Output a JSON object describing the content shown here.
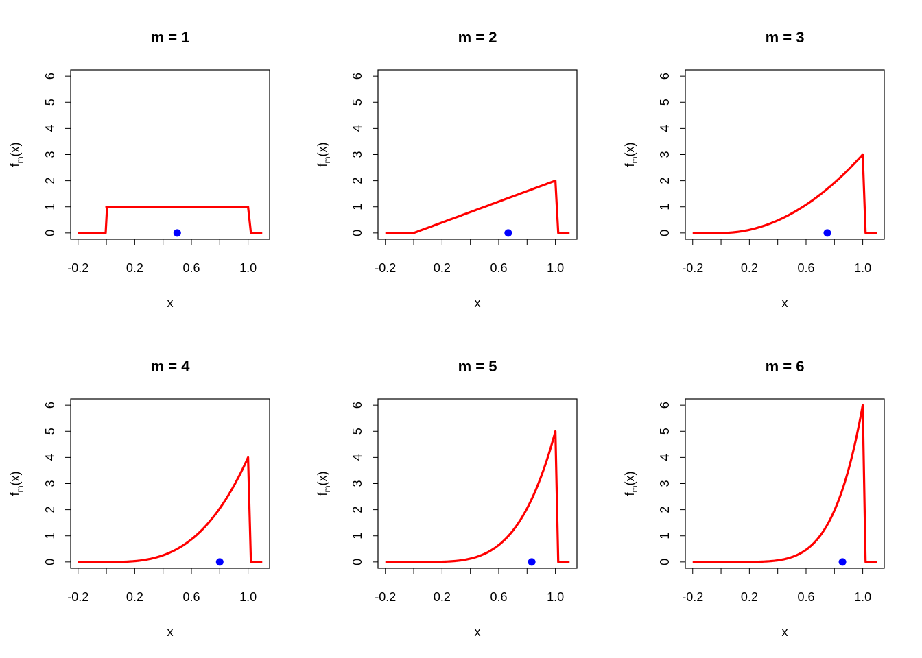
{
  "chart_data": [
    {
      "type": "line",
      "title": "m =  1",
      "xlabel": "x",
      "ylabel": "f_m(x)",
      "ylabel_main": "f",
      "ylabel_sub": "m",
      "ylabel_tail": "(x)",
      "xlim": [
        -0.2,
        1.1
      ],
      "ylim": [
        0,
        6
      ],
      "x_ticks": [
        -0.2,
        0.0,
        0.2,
        0.4,
        0.6,
        0.8,
        1.0
      ],
      "x_tick_labels": [
        "-0.2",
        "",
        "0.2",
        "",
        "0.6",
        "",
        "1.0"
      ],
      "y_ticks": [
        0,
        1,
        2,
        3,
        4,
        5,
        6
      ],
      "y_tick_labels": [
        "0",
        "1",
        "2",
        "3",
        "4",
        "5",
        "6"
      ],
      "m": 1,
      "density_formula": "m * x^(m-1) on [0,1], 0 elsewhere",
      "series_color": "#ff0000",
      "marker": {
        "x": 0.5,
        "y": 0,
        "color": "#0000ff"
      }
    },
    {
      "type": "line",
      "title": "m =  2",
      "xlabel": "x",
      "ylabel": "f_m(x)",
      "ylabel_main": "f",
      "ylabel_sub": "m",
      "ylabel_tail": "(x)",
      "xlim": [
        -0.2,
        1.1
      ],
      "ylim": [
        0,
        6
      ],
      "x_ticks": [
        -0.2,
        0.0,
        0.2,
        0.4,
        0.6,
        0.8,
        1.0
      ],
      "x_tick_labels": [
        "-0.2",
        "",
        "0.2",
        "",
        "0.6",
        "",
        "1.0"
      ],
      "y_ticks": [
        0,
        1,
        2,
        3,
        4,
        5,
        6
      ],
      "y_tick_labels": [
        "0",
        "1",
        "2",
        "3",
        "4",
        "5",
        "6"
      ],
      "m": 2,
      "density_formula": "m * x^(m-1) on [0,1], 0 elsewhere",
      "series_color": "#ff0000",
      "marker": {
        "x": 0.667,
        "y": 0,
        "color": "#0000ff"
      }
    },
    {
      "type": "line",
      "title": "m =  3",
      "xlabel": "x",
      "ylabel": "f_m(x)",
      "ylabel_main": "f",
      "ylabel_sub": "m",
      "ylabel_tail": "(x)",
      "xlim": [
        -0.2,
        1.1
      ],
      "ylim": [
        0,
        6
      ],
      "x_ticks": [
        -0.2,
        0.0,
        0.2,
        0.4,
        0.6,
        0.8,
        1.0
      ],
      "x_tick_labels": [
        "-0.2",
        "",
        "0.2",
        "",
        "0.6",
        "",
        "1.0"
      ],
      "y_ticks": [
        0,
        1,
        2,
        3,
        4,
        5,
        6
      ],
      "y_tick_labels": [
        "0",
        "1",
        "2",
        "3",
        "4",
        "5",
        "6"
      ],
      "m": 3,
      "density_formula": "m * x^(m-1) on [0,1], 0 elsewhere",
      "series_color": "#ff0000",
      "marker": {
        "x": 0.75,
        "y": 0,
        "color": "#0000ff"
      }
    },
    {
      "type": "line",
      "title": "m =  4",
      "xlabel": "x",
      "ylabel": "f_m(x)",
      "ylabel_main": "f",
      "ylabel_sub": "m",
      "ylabel_tail": "(x)",
      "xlim": [
        -0.2,
        1.1
      ],
      "ylim": [
        0,
        6
      ],
      "x_ticks": [
        -0.2,
        0.0,
        0.2,
        0.4,
        0.6,
        0.8,
        1.0
      ],
      "x_tick_labels": [
        "-0.2",
        "",
        "0.2",
        "",
        "0.6",
        "",
        "1.0"
      ],
      "y_ticks": [
        0,
        1,
        2,
        3,
        4,
        5,
        6
      ],
      "y_tick_labels": [
        "0",
        "1",
        "2",
        "3",
        "4",
        "5",
        "6"
      ],
      "m": 4,
      "density_formula": "m * x^(m-1) on [0,1], 0 elsewhere",
      "series_color": "#ff0000",
      "marker": {
        "x": 0.8,
        "y": 0,
        "color": "#0000ff"
      }
    },
    {
      "type": "line",
      "title": "m =  5",
      "xlabel": "x",
      "ylabel": "f_m(x)",
      "ylabel_main": "f",
      "ylabel_sub": "m",
      "ylabel_tail": "(x)",
      "xlim": [
        -0.2,
        1.1
      ],
      "ylim": [
        0,
        6
      ],
      "x_ticks": [
        -0.2,
        0.0,
        0.2,
        0.4,
        0.6,
        0.8,
        1.0
      ],
      "x_tick_labels": [
        "-0.2",
        "",
        "0.2",
        "",
        "0.6",
        "",
        "1.0"
      ],
      "y_ticks": [
        0,
        1,
        2,
        3,
        4,
        5,
        6
      ],
      "y_tick_labels": [
        "0",
        "1",
        "2",
        "3",
        "4",
        "5",
        "6"
      ],
      "m": 5,
      "density_formula": "m * x^(m-1) on [0,1], 0 elsewhere",
      "series_color": "#ff0000",
      "marker": {
        "x": 0.833,
        "y": 0,
        "color": "#0000ff"
      }
    },
    {
      "type": "line",
      "title": "m =  6",
      "xlabel": "x",
      "ylabel": "f_m(x)",
      "ylabel_main": "f",
      "ylabel_sub": "m",
      "ylabel_tail": "(x)",
      "xlim": [
        -0.2,
        1.1
      ],
      "ylim": [
        0,
        6
      ],
      "x_ticks": [
        -0.2,
        0.0,
        0.2,
        0.4,
        0.6,
        0.8,
        1.0
      ],
      "x_tick_labels": [
        "-0.2",
        "",
        "0.2",
        "",
        "0.6",
        "",
        "1.0"
      ],
      "y_ticks": [
        0,
        1,
        2,
        3,
        4,
        5,
        6
      ],
      "y_tick_labels": [
        "0",
        "1",
        "2",
        "3",
        "4",
        "5",
        "6"
      ],
      "m": 6,
      "density_formula": "m * x^(m-1) on [0,1], 0 elsewhere",
      "series_color": "#ff0000",
      "marker": {
        "x": 0.857,
        "y": 0,
        "color": "#0000ff"
      }
    }
  ]
}
